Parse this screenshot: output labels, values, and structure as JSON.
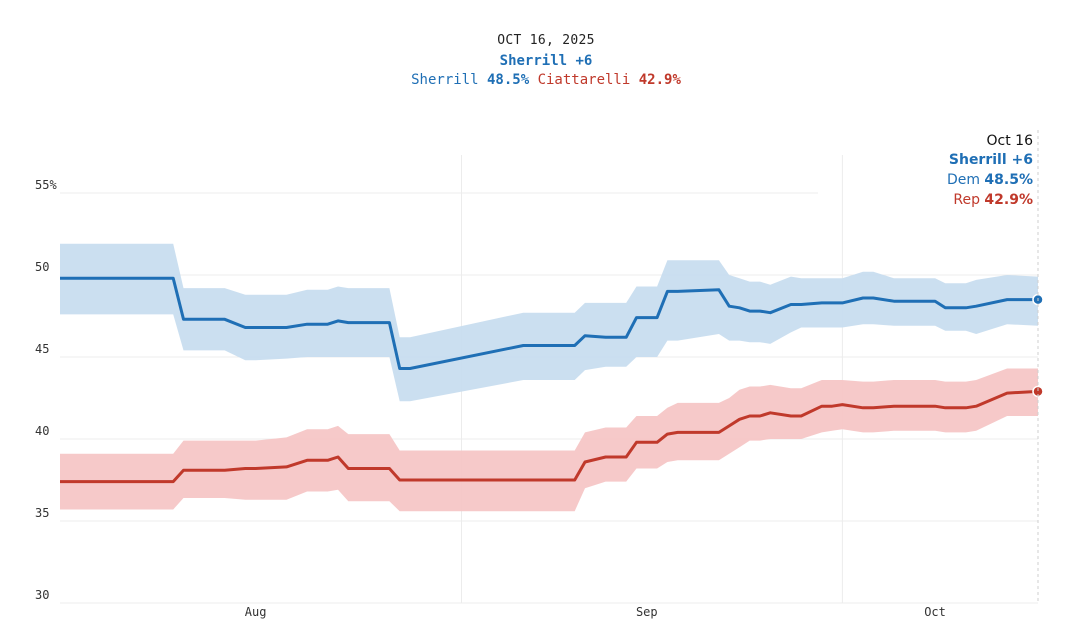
{
  "header": {
    "date": "OCT 16, 2025",
    "lead": "Sherrill +6",
    "dem_name": "Sherrill",
    "dem_value": "48.5%",
    "rep_name": "Ciattarelli",
    "rep_value": "42.9%"
  },
  "end_label": {
    "date": "Oct 16",
    "lead": "Sherrill +6",
    "dem_label": "Dem",
    "dem_value": "48.5%",
    "rep_label": "Rep",
    "rep_value": "42.9%"
  },
  "colors": {
    "dem": "#1f6fb5",
    "rep": "#c0392b",
    "dem_band": "#c8ddef",
    "rep_band": "#f5c6c6"
  },
  "chart_data": {
    "type": "line",
    "title": "OCT 16, 2025",
    "ylim": [
      30,
      57
    ],
    "xlim": [
      0,
      95
    ],
    "yticks": [
      {
        "value": 55,
        "label": "55%"
      },
      {
        "value": 50,
        "label": "50"
      },
      {
        "value": 45,
        "label": "45"
      },
      {
        "value": 40,
        "label": "40"
      },
      {
        "value": 35,
        "label": "35"
      },
      {
        "value": 30,
        "label": "30"
      }
    ],
    "xticks": [
      {
        "value": 19,
        "label": "Aug"
      },
      {
        "value": 57,
        "label": "Sep"
      },
      {
        "value": 85,
        "label": "Oct"
      }
    ],
    "grid_x": [
      39,
      76
    ],
    "series": [
      {
        "name": "Dem",
        "candidate": "Sherrill",
        "x": [
          0,
          11,
          12,
          16,
          18,
          19,
          22,
          24,
          26,
          27,
          28,
          32,
          33,
          34,
          45,
          46,
          49,
          50,
          51,
          53,
          55,
          56,
          58,
          59,
          60,
          64,
          65,
          66,
          67,
          68,
          69,
          71,
          72,
          74,
          75,
          76,
          78,
          79,
          81,
          85,
          86,
          88,
          89,
          92,
          95
        ],
        "values": [
          49.8,
          49.8,
          47.3,
          47.3,
          46.8,
          46.8,
          46.8,
          47.0,
          47.0,
          47.2,
          47.1,
          47.1,
          44.3,
          44.3,
          45.7,
          45.7,
          45.7,
          45.7,
          46.3,
          46.2,
          46.2,
          47.4,
          47.4,
          49.0,
          49.0,
          49.1,
          48.1,
          48.0,
          47.8,
          47.8,
          47.7,
          48.2,
          48.2,
          48.3,
          48.3,
          48.3,
          48.6,
          48.6,
          48.4,
          48.4,
          48.0,
          48.0,
          48.1,
          48.5,
          48.5
        ],
        "lower": [
          47.6,
          47.6,
          45.4,
          45.4,
          44.8,
          44.8,
          44.9,
          45.0,
          45.0,
          45.0,
          45.0,
          45.0,
          42.3,
          42.3,
          43.6,
          43.6,
          43.6,
          43.6,
          44.2,
          44.4,
          44.4,
          45.0,
          45.0,
          46.0,
          46.0,
          46.4,
          46.0,
          46.0,
          45.9,
          45.9,
          45.8,
          46.5,
          46.8,
          46.8,
          46.8,
          46.8,
          47.0,
          47.0,
          46.9,
          46.9,
          46.6,
          46.6,
          46.4,
          47.0,
          46.9
        ],
        "upper": [
          51.9,
          51.9,
          49.2,
          49.2,
          48.8,
          48.8,
          48.8,
          49.1,
          49.1,
          49.3,
          49.2,
          49.2,
          46.2,
          46.2,
          47.7,
          47.7,
          47.7,
          47.7,
          48.3,
          48.3,
          48.3,
          49.3,
          49.3,
          50.9,
          50.9,
          50.9,
          50.0,
          49.8,
          49.6,
          49.6,
          49.4,
          49.9,
          49.8,
          49.8,
          49.8,
          49.8,
          50.2,
          50.2,
          49.8,
          49.8,
          49.5,
          49.5,
          49.7,
          50.0,
          49.9
        ]
      },
      {
        "name": "Rep",
        "candidate": "Ciattarelli",
        "x": [
          0,
          11,
          12,
          16,
          18,
          19,
          22,
          24,
          26,
          27,
          28,
          32,
          33,
          34,
          45,
          46,
          49,
          50,
          51,
          53,
          55,
          56,
          58,
          59,
          60,
          64,
          65,
          66,
          67,
          68,
          69,
          71,
          72,
          74,
          75,
          76,
          78,
          79,
          81,
          85,
          86,
          88,
          89,
          92,
          95
        ],
        "values": [
          37.4,
          37.4,
          38.1,
          38.1,
          38.2,
          38.2,
          38.3,
          38.7,
          38.7,
          38.9,
          38.2,
          38.2,
          37.5,
          37.5,
          37.5,
          37.5,
          37.5,
          37.5,
          38.6,
          38.9,
          38.9,
          39.8,
          39.8,
          40.3,
          40.4,
          40.4,
          40.8,
          41.2,
          41.4,
          41.4,
          41.6,
          41.4,
          41.4,
          42.0,
          42.0,
          42.1,
          41.9,
          41.9,
          42.0,
          42.0,
          41.9,
          41.9,
          42.0,
          42.8,
          42.9
        ],
        "lower": [
          35.7,
          35.7,
          36.4,
          36.4,
          36.3,
          36.3,
          36.3,
          36.8,
          36.8,
          36.9,
          36.2,
          36.2,
          35.6,
          35.6,
          35.6,
          35.6,
          35.6,
          35.6,
          37.0,
          37.4,
          37.4,
          38.2,
          38.2,
          38.6,
          38.7,
          38.7,
          39.1,
          39.5,
          39.9,
          39.9,
          40.0,
          40.0,
          40.0,
          40.4,
          40.5,
          40.6,
          40.4,
          40.4,
          40.5,
          40.5,
          40.4,
          40.4,
          40.5,
          41.4,
          41.4
        ],
        "upper": [
          39.1,
          39.1,
          39.9,
          39.9,
          39.9,
          39.9,
          40.1,
          40.6,
          40.6,
          40.8,
          40.3,
          40.3,
          39.3,
          39.3,
          39.3,
          39.3,
          39.3,
          39.3,
          40.4,
          40.7,
          40.7,
          41.4,
          41.4,
          41.9,
          42.2,
          42.2,
          42.5,
          43.0,
          43.2,
          43.2,
          43.3,
          43.1,
          43.1,
          43.6,
          43.6,
          43.6,
          43.5,
          43.5,
          43.6,
          43.6,
          43.5,
          43.5,
          43.6,
          44.3,
          44.3
        ]
      }
    ]
  }
}
